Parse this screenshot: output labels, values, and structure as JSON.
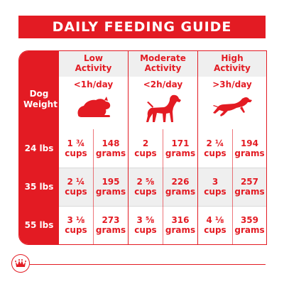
{
  "title": "DAILY FEEDING GUIDE",
  "row_header": "Dog Weight",
  "columns": [
    {
      "label_line1": "Low",
      "label_line2": "Activity",
      "hours": "<1h/day",
      "icon": "resting-dog-icon"
    },
    {
      "label_line1": "Moderate",
      "label_line2": "Activity",
      "hours": "<2h/day",
      "icon": "standing-dog-icon"
    },
    {
      "label_line1": "High",
      "label_line2": "Activity",
      "hours": ">3h/day",
      "icon": "running-dog-icon"
    }
  ],
  "rows": [
    {
      "weight": "24 lbs",
      "cells": [
        {
          "cups_amount": "1 ¾",
          "cups_unit": "cups",
          "grams_amount": "148",
          "grams_unit": "grams"
        },
        {
          "cups_amount": "2",
          "cups_unit": "cups",
          "grams_amount": "171",
          "grams_unit": "grams"
        },
        {
          "cups_amount": "2 ¼",
          "cups_unit": "cups",
          "grams_amount": "194",
          "grams_unit": "grams"
        }
      ]
    },
    {
      "weight": "35 lbs",
      "cells": [
        {
          "cups_amount": "2 ¼",
          "cups_unit": "cups",
          "grams_amount": "195",
          "grams_unit": "grams"
        },
        {
          "cups_amount": "2 ⅝",
          "cups_unit": "cups",
          "grams_amount": "226",
          "grams_unit": "grams"
        },
        {
          "cups_amount": "3",
          "cups_unit": "cups",
          "grams_amount": "257",
          "grams_unit": "grams"
        }
      ]
    },
    {
      "weight": "55 lbs",
      "cells": [
        {
          "cups_amount": "3 ⅛",
          "cups_unit": "cups",
          "grams_amount": "273",
          "grams_unit": "grams"
        },
        {
          "cups_amount": "3 ⅝",
          "cups_unit": "cups",
          "grams_amount": "316",
          "grams_unit": "grams"
        },
        {
          "cups_amount": "4 ⅛",
          "cups_unit": "cups",
          "grams_amount": "359",
          "grams_unit": "grams"
        }
      ]
    }
  ],
  "colors": {
    "brand_red": "#e31b23",
    "band_grey": "#efefef"
  },
  "logo_icon": "royal-crown-logo-icon"
}
